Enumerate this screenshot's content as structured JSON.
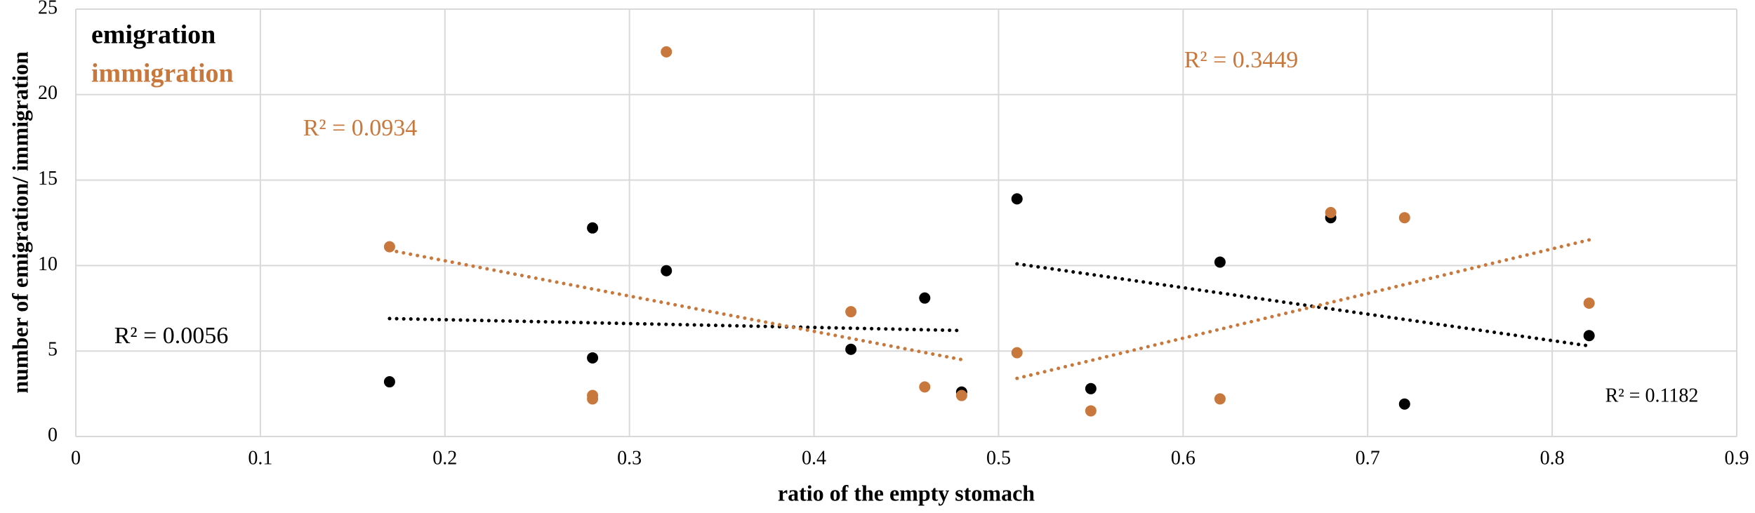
{
  "chart_data": {
    "type": "scatter",
    "x_label": "ratio of the empty stomach",
    "y_label": "number of emigration/ immigration",
    "xlim": [
      0,
      0.9
    ],
    "xticks": [
      0,
      0.1,
      0.2,
      0.3,
      0.4,
      0.5,
      0.6,
      0.7,
      0.8,
      0.9
    ],
    "ylim": [
      0,
      25
    ],
    "yticks": [
      0,
      5,
      10,
      15,
      20,
      25
    ],
    "grid": true,
    "legend": "upper left",
    "series": [
      {
        "name": "emigration",
        "color": "#000000",
        "x": [
          0.17,
          0.28,
          0.28,
          0.32,
          0.42,
          0.46,
          0.48,
          0.51,
          0.55,
          0.62,
          0.68,
          0.72,
          0.82
        ],
        "values": [
          3.2,
          12.2,
          4.6,
          9.7,
          5.1,
          8.1,
          2.6,
          13.9,
          2.8,
          10.2,
          12.8,
          1.9,
          5.9
        ],
        "trendlines": [
          {
            "x": [
              0.17,
              0.48
            ],
            "y": [
              6.9,
              6.2
            ]
          },
          {
            "x": [
              0.51,
              0.82
            ],
            "y": [
              10.1,
              5.3
            ]
          }
        ],
        "r2_labels": [
          "R² = 0.0056",
          "R² = 0.1182"
        ]
      },
      {
        "name": "immigration",
        "color": "#c8783c",
        "x": [
          0.17,
          0.28,
          0.28,
          0.32,
          0.42,
          0.46,
          0.48,
          0.51,
          0.55,
          0.62,
          0.68,
          0.72,
          0.82
        ],
        "values": [
          11.1,
          2.4,
          2.2,
          22.5,
          7.3,
          2.9,
          2.4,
          4.9,
          1.5,
          2.2,
          13.1,
          12.8,
          7.8
        ],
        "trendlines": [
          {
            "x": [
              0.17,
              0.48
            ],
            "y": [
              10.9,
              4.5
            ]
          },
          {
            "x": [
              0.51,
              0.82
            ],
            "y": [
              3.4,
              11.5
            ]
          }
        ],
        "r2_labels": [
          "R² = 0.0934",
          "R² = 0.3449"
        ]
      }
    ]
  }
}
